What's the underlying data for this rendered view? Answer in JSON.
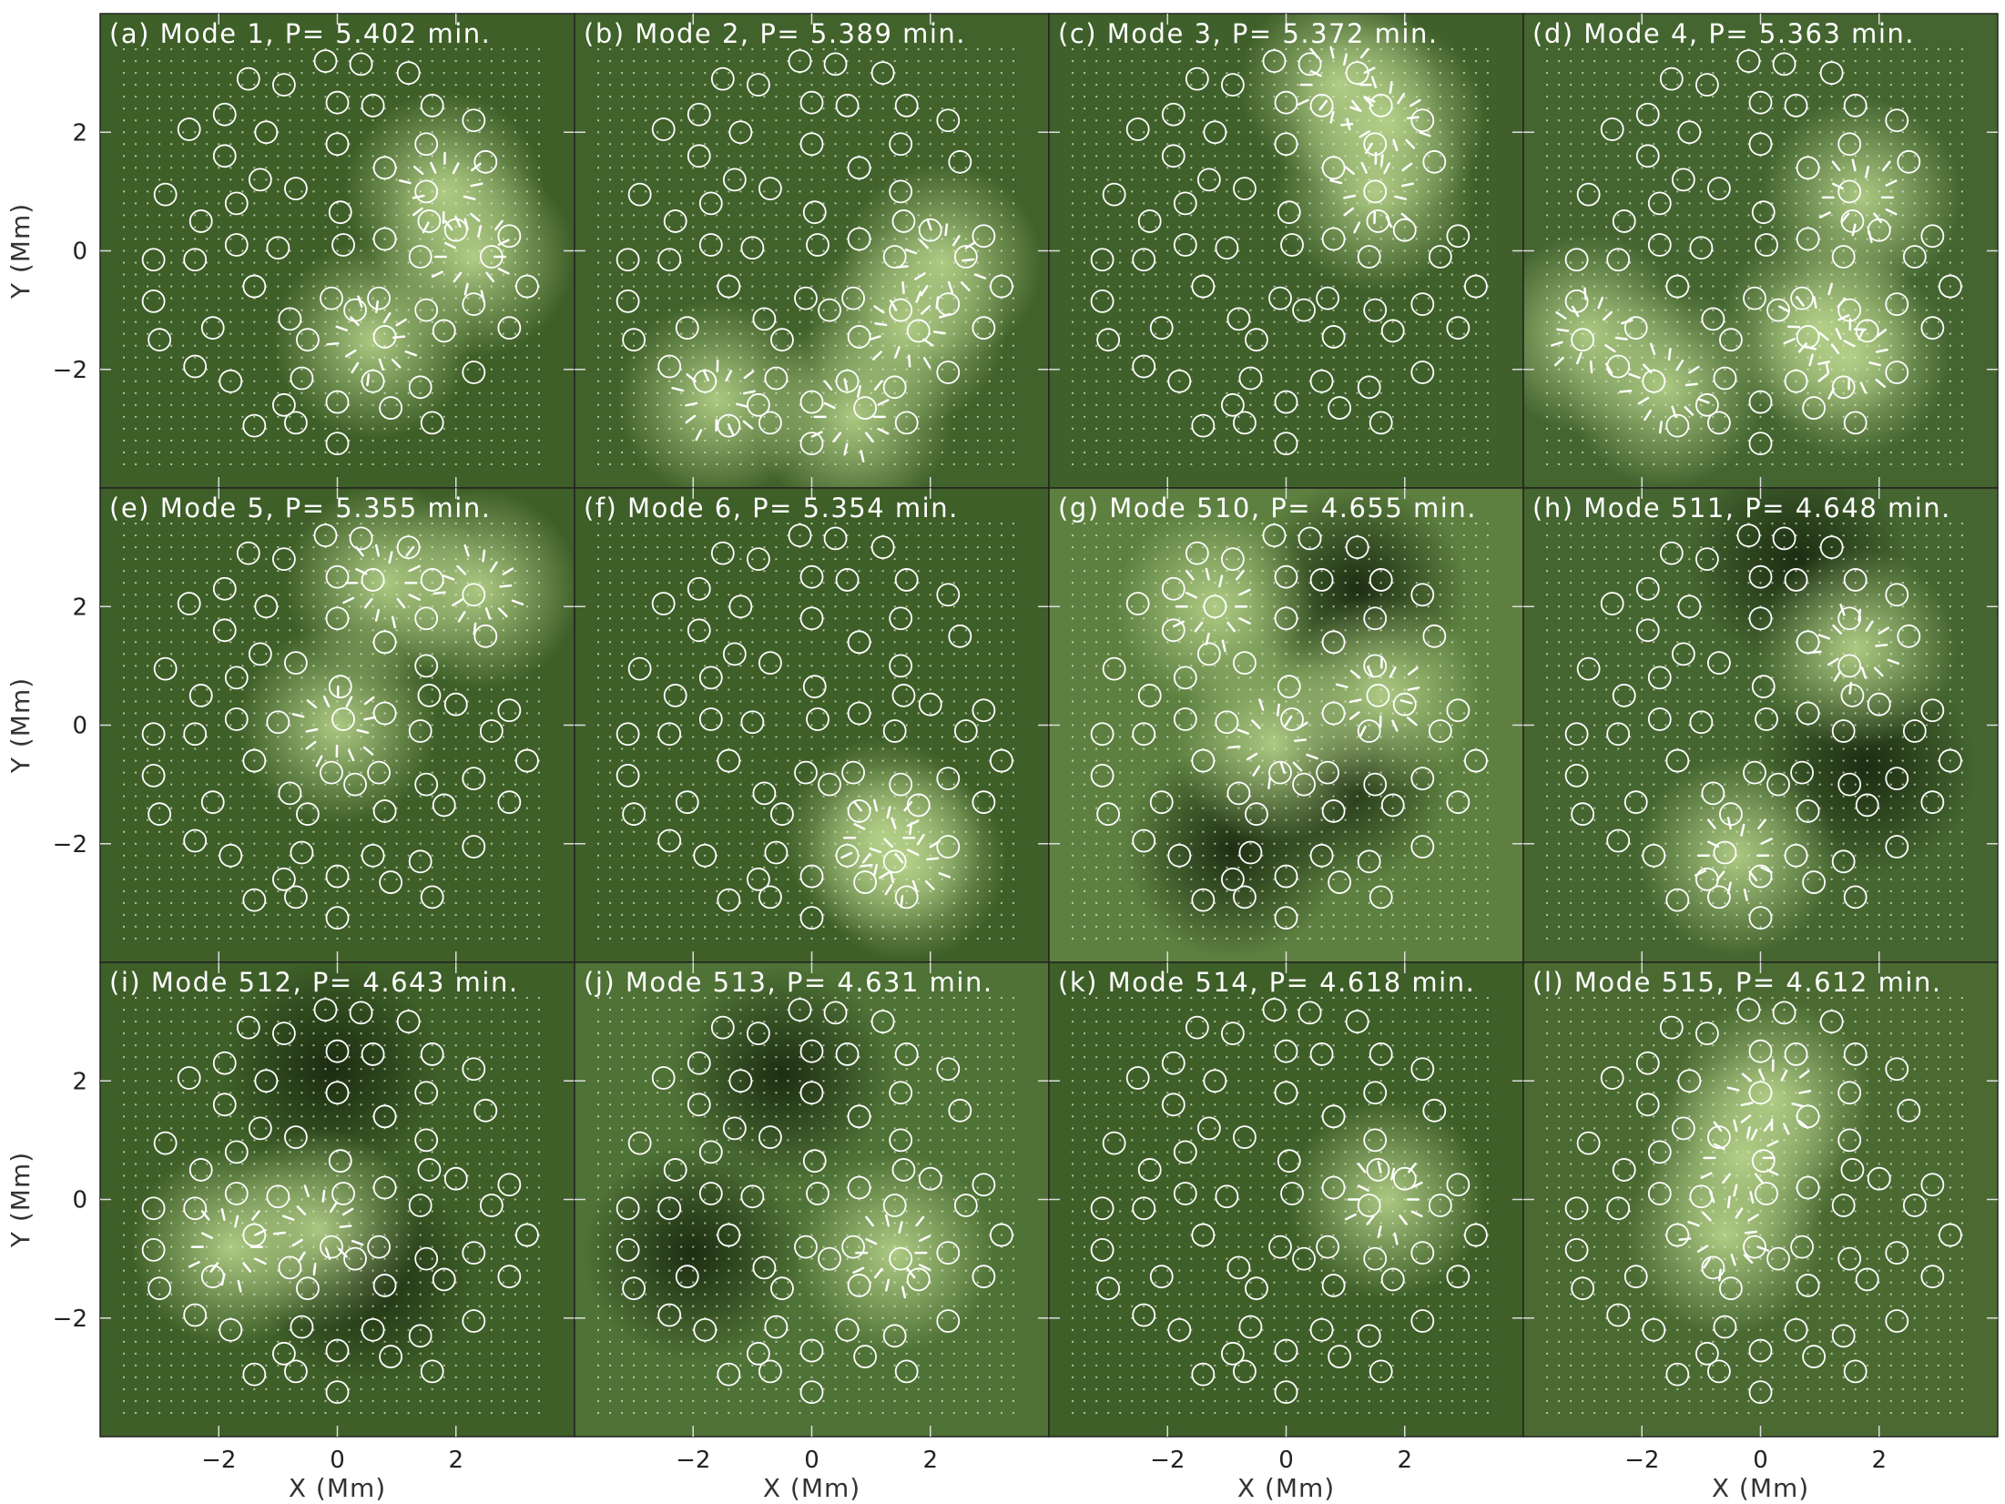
{
  "figure": {
    "xlabel": "X (Mm)",
    "ylabel": "Y (Mm)",
    "xticks": [
      -2,
      0,
      2
    ],
    "yticks": [
      2,
      0,
      -2
    ],
    "xlim": [
      -4.0,
      4.0
    ],
    "ylim": [
      -4.0,
      4.0
    ],
    "colors": {
      "background": "#4a6a32",
      "bright": "#b8d48c",
      "dark": "#1a2a10",
      "marker": "#ffffff"
    }
  },
  "chart_data": {
    "type": "heatmap",
    "description_units": "Mm",
    "pore_positions": [
      [
        -0.2,
        3.2
      ],
      [
        0.4,
        3.15
      ],
      [
        1.2,
        3.0
      ],
      [
        -1.5,
        2.9
      ],
      [
        -0.9,
        2.8
      ],
      [
        0.0,
        2.5
      ],
      [
        0.6,
        2.45
      ],
      [
        1.6,
        2.45
      ],
      [
        -2.5,
        2.05
      ],
      [
        -1.9,
        2.3
      ],
      [
        -1.2,
        2.0
      ],
      [
        2.3,
        2.2
      ],
      [
        0.0,
        1.8
      ],
      [
        1.5,
        1.8
      ],
      [
        -1.9,
        1.6
      ],
      [
        -1.3,
        1.2
      ],
      [
        0.8,
        1.4
      ],
      [
        2.5,
        1.5
      ],
      [
        -2.9,
        0.95
      ],
      [
        -1.7,
        0.8
      ],
      [
        -0.7,
        1.05
      ],
      [
        1.5,
        1.0
      ],
      [
        -2.3,
        0.5
      ],
      [
        0.05,
        0.65
      ],
      [
        1.55,
        0.5
      ],
      [
        2.0,
        0.35
      ],
      [
        2.9,
        0.25
      ],
      [
        -1.7,
        0.1
      ],
      [
        -1.0,
        0.05
      ],
      [
        0.1,
        0.1
      ],
      [
        0.8,
        0.2
      ],
      [
        1.4,
        -0.1
      ],
      [
        2.6,
        -0.1
      ],
      [
        -3.1,
        -0.15
      ],
      [
        -2.4,
        -0.15
      ],
      [
        -1.4,
        -0.6
      ],
      [
        -0.1,
        -0.8
      ],
      [
        0.7,
        -0.8
      ],
      [
        1.5,
        -1.0
      ],
      [
        2.3,
        -0.9
      ],
      [
        3.2,
        -0.6
      ],
      [
        -3.1,
        -0.85
      ],
      [
        -0.8,
        -1.15
      ],
      [
        0.3,
        -1.0
      ],
      [
        -2.1,
        -1.3
      ],
      [
        -3.0,
        -1.5
      ],
      [
        -0.5,
        -1.5
      ],
      [
        0.8,
        -1.45
      ],
      [
        1.8,
        -1.35
      ],
      [
        2.9,
        -1.3
      ],
      [
        -2.4,
        -1.95
      ],
      [
        -0.6,
        -2.15
      ],
      [
        0.6,
        -2.2
      ],
      [
        1.4,
        -2.3
      ],
      [
        2.3,
        -2.05
      ],
      [
        -1.8,
        -2.2
      ],
      [
        -0.9,
        -2.6
      ],
      [
        0.0,
        -2.55
      ],
      [
        0.9,
        -2.65
      ],
      [
        -1.4,
        -2.95
      ],
      [
        -0.7,
        -2.9
      ],
      [
        1.6,
        -2.9
      ],
      [
        0.0,
        -3.25
      ]
    ],
    "panels": [
      {
        "label": "(a)",
        "mode": "1",
        "period": "5.402",
        "title": "(a) Mode 1, P= 5.402 min.",
        "bg": "#3e5f28",
        "bright": [
          [
            2.3,
            -0.1
          ],
          [
            0.6,
            -1.5
          ],
          [
            1.8,
            1.0
          ]
        ],
        "dark": []
      },
      {
        "label": "(b)",
        "mode": "2",
        "period": "5.389",
        "title": "(b) Mode 2, P= 5.389 min.",
        "bg": "#41622b",
        "bright": [
          [
            0.7,
            -2.8
          ],
          [
            2.2,
            -0.2
          ],
          [
            -1.6,
            -2.5
          ],
          [
            1.6,
            -1.3
          ]
        ],
        "dark": []
      },
      {
        "label": "(c)",
        "mode": "3",
        "period": "5.372",
        "title": "(c) Mode 3, P= 5.372 min.",
        "bg": "#3f602a",
        "bright": [
          [
            0.9,
            2.8
          ],
          [
            1.7,
            2.2
          ],
          [
            1.5,
            1.0
          ]
        ],
        "dark": []
      },
      {
        "label": "(d)",
        "mode": "4",
        "period": "5.363",
        "title": "(d) Mode 4, P= 5.363 min.",
        "bg": "#446530",
        "bright": [
          [
            1.7,
            0.9
          ],
          [
            -1.6,
            -2.3
          ],
          [
            1.5,
            -1.8
          ],
          [
            -2.9,
            -1.4
          ],
          [
            1.0,
            -1.3
          ]
        ],
        "dark": []
      },
      {
        "label": "(e)",
        "mode": "5",
        "period": "5.355",
        "title": "(e) Mode 5, P= 5.355 min.",
        "bg": "#3e5f28",
        "bright": [
          [
            0.8,
            2.4
          ],
          [
            2.4,
            2.3
          ],
          [
            0.0,
            0.0
          ]
        ],
        "dark": []
      },
      {
        "label": "(f)",
        "mode": "6",
        "period": "5.354",
        "title": "(f) Mode 6, P= 5.354 min.",
        "bg": "#3e5f28",
        "bright": [
          [
            1.2,
            -1.9
          ],
          [
            1.6,
            -2.3
          ]
        ],
        "dark": []
      },
      {
        "label": "(g)",
        "mode": "510",
        "period": "4.655",
        "title": "(g) Mode 510, P= 4.655 min.",
        "bg": "#5d8040",
        "bright": [
          [
            -1.2,
            2.0
          ],
          [
            -0.2,
            -0.3
          ],
          [
            1.6,
            0.5
          ]
        ],
        "dark": [
          [
            1.2,
            2.3
          ],
          [
            -0.9,
            -2.1
          ],
          [
            0.9,
            -0.9
          ]
        ]
      },
      {
        "label": "(h)",
        "mode": "511",
        "period": "4.648",
        "title": "(h) Mode 511, P= 4.648 min.",
        "bg": "#456630",
        "bright": [
          [
            -0.4,
            -2.2
          ],
          [
            1.6,
            1.3
          ]
        ],
        "dark": [
          [
            0.6,
            2.8
          ],
          [
            1.8,
            -0.7
          ]
        ]
      },
      {
        "label": "(i)",
        "mode": "512",
        "period": "4.643",
        "title": "(i) Mode 512, P= 4.643 min.",
        "bg": "#3e5f28",
        "bright": [
          [
            -1.8,
            -0.8
          ],
          [
            -0.3,
            -0.5
          ]
        ],
        "dark": [
          [
            -0.1,
            2.2
          ],
          [
            0.5,
            -1.3
          ]
        ]
      },
      {
        "label": "(j)",
        "mode": "513",
        "period": "4.631",
        "title": "(j) Mode 513, P= 4.631 min.",
        "bg": "#4f7236",
        "bright": [
          [
            1.4,
            -0.9
          ]
        ],
        "dark": [
          [
            -0.5,
            2.1
          ],
          [
            -2.0,
            -0.9
          ]
        ]
      },
      {
        "label": "(k)",
        "mode": "514",
        "period": "4.618",
        "title": "(k) Mode 514, P= 4.618 min.",
        "bg": "#3e5f28",
        "bright": [
          [
            1.7,
            0.0
          ]
        ],
        "dark": []
      },
      {
        "label": "(l)",
        "mode": "515",
        "period": "4.612",
        "title": "(l) Mode 515, P= 4.612 min.",
        "bg": "#4a6a32",
        "bright": [
          [
            -0.3,
            0.7
          ],
          [
            -0.6,
            -0.6
          ],
          [
            0.2,
            1.7
          ]
        ],
        "dark": []
      }
    ]
  }
}
